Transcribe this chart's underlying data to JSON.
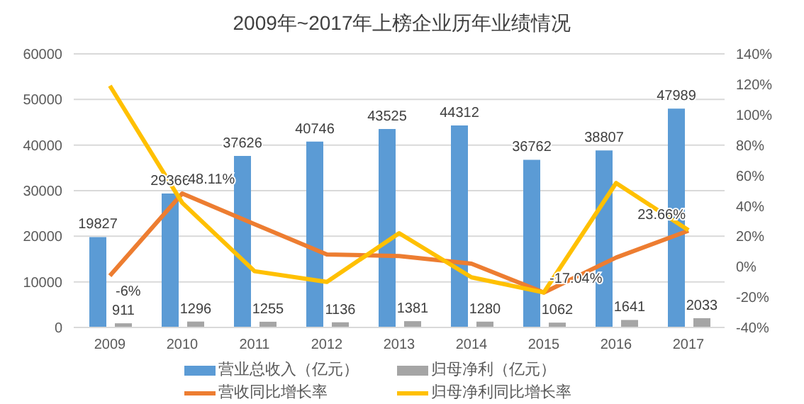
{
  "chart_data": {
    "type": "bar",
    "title": "2009年~2017年上榜企业历年业绩情况",
    "categories": [
      "2009",
      "2010",
      "2011",
      "2012",
      "2013",
      "2014",
      "2015",
      "2016",
      "2017"
    ],
    "series": [
      {
        "name": "营业总收入（亿元）",
        "color": "#5b9bd5",
        "values": [
          19827,
          29366,
          37626,
          40746,
          43525,
          44312,
          36762,
          38807,
          47989
        ],
        "value_labels": [
          "19827",
          "29366",
          "37626",
          "40746",
          "43525",
          "44312",
          "36762",
          "38807",
          "47989"
        ]
      },
      {
        "name": "归母净利（亿元）",
        "color": "#a5a5a5",
        "values": [
          911,
          1296,
          1255,
          1136,
          1381,
          1280,
          1062,
          1641,
          2033
        ],
        "value_labels": [
          "911",
          "1296",
          "1255",
          "1136",
          "1381",
          "1280",
          "1062",
          "1641",
          "2033"
        ]
      },
      {
        "name": "营收同比增长率",
        "type": "line",
        "axis": "y2",
        "color": "#ed7d31",
        "values": [
          -6,
          48.11,
          28,
          8,
          7,
          2,
          -17.04,
          6,
          23.66
        ],
        "value_labels": [
          "-6%",
          "48.11%",
          null,
          null,
          null,
          null,
          "-17.04%",
          null,
          "23.66%"
        ]
      },
      {
        "name": "归母净利同比增长率",
        "type": "line",
        "axis": "y2",
        "color": "#ffc000",
        "values": [
          119,
          42,
          -3,
          -10,
          22,
          -7,
          -17,
          55,
          24
        ]
      }
    ],
    "ylim": [
      0,
      60000
    ],
    "yticks": [
      0,
      10000,
      20000,
      30000,
      40000,
      50000,
      60000
    ],
    "y2lim": [
      -40,
      140
    ],
    "y2ticks": [
      {
        "value": -40,
        "label": "-40%"
      },
      {
        "value": -20,
        "label": "-20%"
      },
      {
        "value": 0,
        "label": "0%"
      },
      {
        "value": 20,
        "label": "20%"
      },
      {
        "value": 40,
        "label": "40%"
      },
      {
        "value": 60,
        "label": "60%"
      },
      {
        "value": 80,
        "label": "80%"
      },
      {
        "value": 100,
        "label": "100%"
      },
      {
        "value": 120,
        "label": "120%"
      },
      {
        "value": 140,
        "label": "140%"
      }
    ],
    "grid": "y",
    "legend": "bottom",
    "marker": "none",
    "line_style": "solid"
  }
}
